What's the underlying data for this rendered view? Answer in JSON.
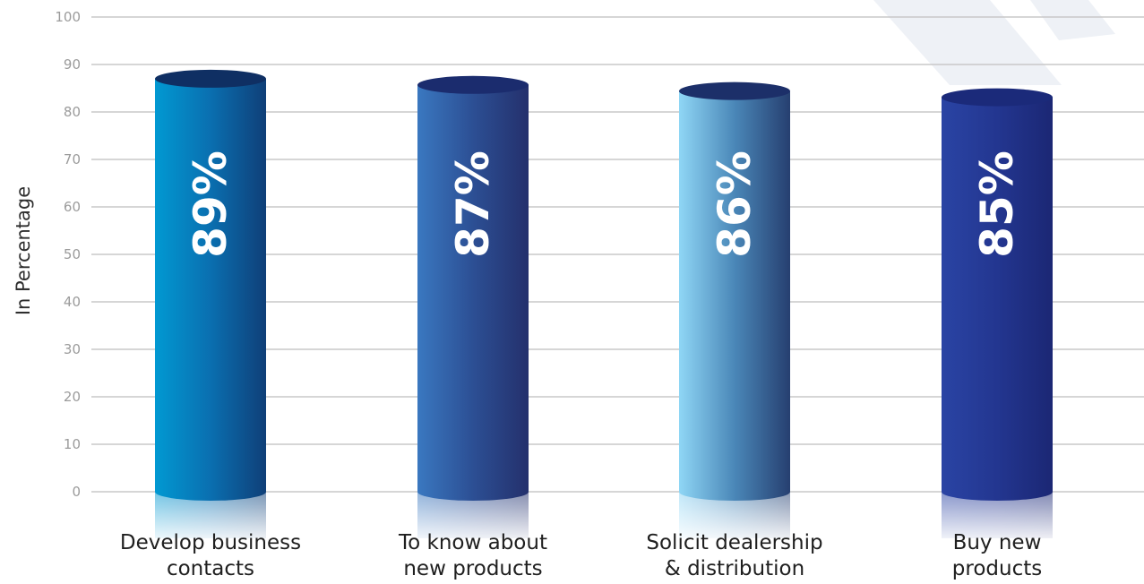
{
  "chart_data": {
    "type": "bar",
    "ylabel": "In Percentage",
    "ylim": [
      0,
      100
    ],
    "yticks": [
      "0",
      "10",
      "20",
      "30",
      "40",
      "50",
      "60",
      "70",
      "80",
      "90",
      "100"
    ],
    "grid": true,
    "categories": [
      [
        "Develop business",
        "contacts"
      ],
      [
        "To know about",
        "new products"
      ],
      [
        "Solicit dealership",
        "& distribution"
      ],
      [
        "Buy new",
        "products"
      ]
    ],
    "values": [
      89,
      87,
      86,
      85
    ],
    "data_labels": [
      "89%",
      "87%",
      "86%",
      "85%"
    ],
    "colors": {
      "bar_gradients": [
        [
          "#0199d2",
          "#0a6fb0",
          "#0f3f78"
        ],
        [
          "#3a78c0",
          "#2c4f94",
          "#24306c"
        ],
        [
          "#8fd6f5",
          "#4a87b8",
          "#263f70"
        ],
        [
          "#2a44a4",
          "#233690",
          "#1b2774"
        ]
      ],
      "bar_tops": [
        "#0f2f63",
        "#1b2c6e",
        "#1c2f69",
        "#1b2a7a"
      ],
      "grid": "#c8c8c8",
      "decor_stripe": "#eef1f6"
    }
  }
}
